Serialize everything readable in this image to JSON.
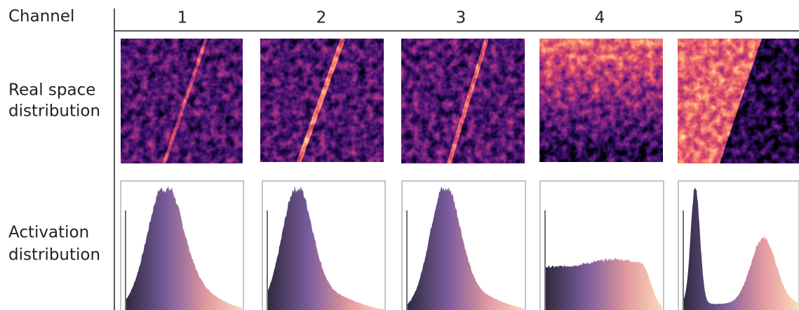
{
  "header": {
    "label": "Channel",
    "columns": [
      "1",
      "2",
      "3",
      "4",
      "5"
    ]
  },
  "rows": [
    {
      "label_lines": [
        "Real space",
        "distribution"
      ]
    },
    {
      "label_lines": [
        "Activation",
        "distribution"
      ]
    }
  ]
}
